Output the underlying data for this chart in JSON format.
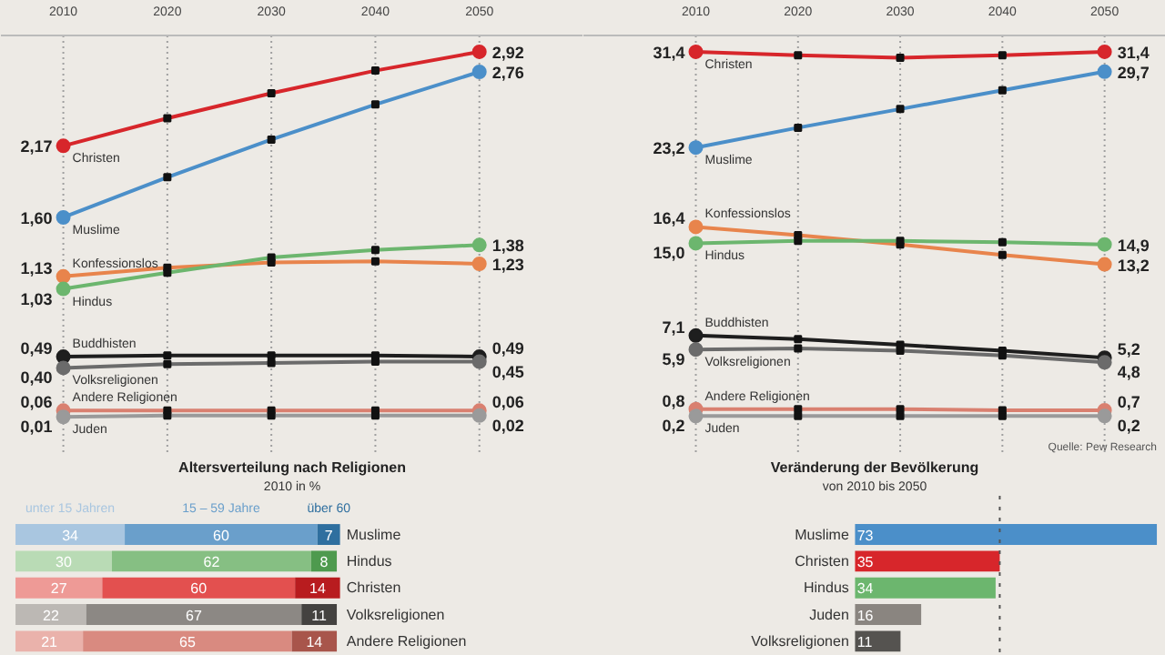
{
  "chart_data": [
    {
      "type": "line",
      "x": [
        2010,
        2020,
        2030,
        2040,
        2050
      ],
      "xlim": [
        2004,
        2060
      ],
      "xticks": [
        2010,
        2020,
        2030,
        2040,
        2050
      ],
      "ylim": [
        -0.3,
        3.05
      ],
      "tick_labels": "x",
      "grid": "x",
      "marker": "circle",
      "line_style": "solid",
      "series": [
        {
          "name": "Christen",
          "color": "#d7262b",
          "values": [
            2.17,
            2.39,
            2.59,
            2.77,
            2.92
          ],
          "value_labels": [
            "2,17",
            null,
            null,
            null,
            "2,92"
          ]
        },
        {
          "name": "Muslime",
          "color": "#4b8fc9",
          "values": [
            1.6,
            1.92,
            2.22,
            2.5,
            2.76
          ],
          "value_labels": [
            "1,60",
            null,
            null,
            null,
            "2,76"
          ]
        },
        {
          "name": "Konfessionslos",
          "color": "#e8844c",
          "values": [
            1.13,
            1.2,
            1.24,
            1.25,
            1.23
          ],
          "value_labels": [
            "1,13",
            null,
            null,
            null,
            "1,23"
          ]
        },
        {
          "name": "Hindus",
          "color": "#6cb66e",
          "values": [
            1.03,
            1.16,
            1.28,
            1.34,
            1.38
          ],
          "value_labels": [
            "1,03",
            null,
            null,
            null,
            "1,38"
          ]
        },
        {
          "name": "Buddhisten",
          "color": "#1e1e1e",
          "values": [
            0.49,
            0.5,
            0.5,
            0.5,
            0.49
          ],
          "value_labels": [
            "0,49",
            null,
            null,
            null,
            "0,49"
          ]
        },
        {
          "name": "Volksreligionen",
          "color": "#6b6b6b",
          "values": [
            0.4,
            0.43,
            0.44,
            0.45,
            0.45
          ],
          "value_labels": [
            "0,40",
            null,
            null,
            null,
            "0,45"
          ]
        },
        {
          "name": "Andere Religionen",
          "color": "#d98070",
          "values": [
            0.06,
            0.06,
            0.06,
            0.06,
            0.06
          ],
          "value_labels": [
            "0,06",
            null,
            null,
            null,
            "0,06"
          ]
        },
        {
          "name": "Juden",
          "color": "#9a9a9a",
          "values": [
            0.01,
            0.02,
            0.02,
            0.02,
            0.02
          ],
          "value_labels": [
            "0,01",
            null,
            null,
            null,
            "0,02"
          ]
        }
      ]
    },
    {
      "type": "line",
      "x": [
        2010,
        2020,
        2030,
        2040,
        2050
      ],
      "xlim": [
        1999,
        2056
      ],
      "xticks": [
        2010,
        2020,
        2030,
        2040,
        2050
      ],
      "ylim": [
        -3.2,
        32.8
      ],
      "tick_labels": "x",
      "grid": "x",
      "marker": "circle",
      "line_style": "solid",
      "annotations": [
        "Quelle: Pew Research"
      ],
      "series": [
        {
          "name": "Christen",
          "color": "#d7262b",
          "values": [
            31.4,
            31.1,
            30.9,
            31.1,
            31.4
          ],
          "value_labels": [
            "31,4",
            null,
            null,
            null,
            "31,4"
          ]
        },
        {
          "name": "Muslime",
          "color": "#4b8fc9",
          "values": [
            23.2,
            24.9,
            26.5,
            28.1,
            29.7
          ],
          "value_labels": [
            "23,2",
            null,
            null,
            null,
            "29,7"
          ]
        },
        {
          "name": "Konfessionslos",
          "color": "#e8844c",
          "values": [
            16.4,
            15.7,
            14.9,
            14.0,
            13.2
          ],
          "value_labels": [
            "16,4",
            null,
            null,
            null,
            "13,2"
          ]
        },
        {
          "name": "Hindus",
          "color": "#6cb66e",
          "values": [
            15.0,
            15.2,
            15.2,
            15.1,
            14.9
          ],
          "value_labels": [
            "15,0",
            null,
            null,
            null,
            "14,9"
          ]
        },
        {
          "name": "Buddhisten",
          "color": "#1e1e1e",
          "values": [
            7.1,
            6.8,
            6.3,
            5.8,
            5.2
          ],
          "value_labels": [
            "7,1",
            null,
            null,
            null,
            "5,2"
          ]
        },
        {
          "name": "Volksreligionen",
          "color": "#6b6b6b",
          "values": [
            5.9,
            6.0,
            5.8,
            5.4,
            4.8
          ],
          "value_labels": [
            "5,9",
            null,
            null,
            null,
            "4,8"
          ]
        },
        {
          "name": "Andere Religionen",
          "color": "#d98070",
          "values": [
            0.8,
            0.8,
            0.8,
            0.7,
            0.7
          ],
          "value_labels": [
            "0,8",
            null,
            null,
            null,
            "0,7"
          ]
        },
        {
          "name": "Juden",
          "color": "#9a9a9a",
          "values": [
            0.2,
            0.2,
            0.2,
            0.2,
            0.2
          ],
          "value_labels": [
            "0,2",
            null,
            null,
            null,
            "0,2"
          ]
        }
      ]
    },
    {
      "type": "bar",
      "orientation": "horizontal",
      "stacked": true,
      "data_labels": true,
      "tick_labels": false,
      "title": "Altersverteilung nach Religionen",
      "subtitle": "2010 in %",
      "categories": [
        "Muslime",
        "Hindus",
        "Christen",
        "Volksreligionen",
        "Andere Religionen"
      ],
      "series": [
        {
          "name": "unter 15 Jahren",
          "colors": [
            "#a9c6e0",
            "#b9dbb5",
            "#ee9a96",
            "#bcb8b4",
            "#eab2ab"
          ],
          "values": [
            34,
            30,
            27,
            22,
            21
          ]
        },
        {
          "name": "15 – 59 Jahre",
          "colors": [
            "#6a9fcb",
            "#86bf83",
            "#e3504f",
            "#8c8884",
            "#d98a80"
          ],
          "values": [
            60,
            62,
            60,
            67,
            65
          ]
        },
        {
          "name": "über 60",
          "colors": [
            "#2f6f9f",
            "#4e9a4e",
            "#b81c1f",
            "#444240",
            "#a8554b"
          ],
          "values": [
            7,
            8,
            14,
            11,
            14
          ]
        }
      ]
    },
    {
      "type": "bar",
      "orientation": "horizontal",
      "data_labels": true,
      "tick_labels": false,
      "title": "Veränderung der Bevölkerung",
      "subtitle": "von 2010 bis 2050",
      "categories": [
        "Muslime",
        "Christen",
        "Hindus",
        "Juden",
        "Volksreligionen"
      ],
      "values": [
        73,
        35,
        34,
        16,
        11
      ],
      "colors": [
        "#4b8fc9",
        "#d7262b",
        "#6cb66e",
        "#8a8580",
        "#555350"
      ],
      "ref_lines": [
        {
          "axis": "x",
          "value": 35,
          "line_style": "dotted"
        }
      ]
    }
  ]
}
